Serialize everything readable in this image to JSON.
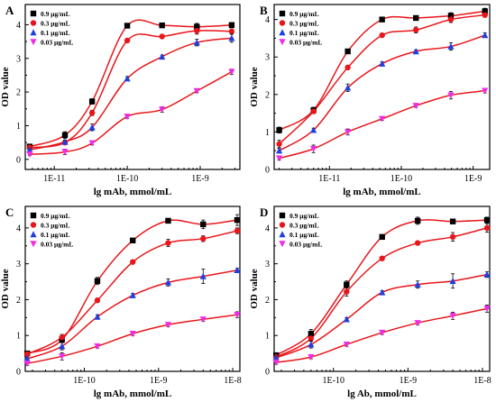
{
  "series_styles": [
    {
      "name": "0.9 μg/mL",
      "color": "#000000",
      "marker": "square"
    },
    {
      "name": "0.3 μg/mL",
      "color": "#e8161b",
      "marker": "circle"
    },
    {
      "name": "0.1 μg/mL",
      "color": "#1f3fe0",
      "marker": "triangle-up"
    },
    {
      "name": "0.03 μg/mL",
      "color": "#ee2ce6",
      "marker": "triangle-down"
    }
  ],
  "curve_color": "#e8161b",
  "chart_data": [
    {
      "panel": "A",
      "type": "scatter",
      "xlabel": "lg mAb, mmol/mL",
      "ylabel": "OD value",
      "xscale": "log",
      "xlim": [
        4e-12,
        3.5e-09
      ],
      "ylim": [
        -0.3,
        4.6
      ],
      "xticks": [
        1e-11,
        1e-10,
        1e-09
      ],
      "xtick_labels": [
        "1E-11",
        "1E-10",
        "1E-9"
      ],
      "yticks": [
        0,
        1,
        2,
        3,
        4
      ],
      "legend_position": "top-left",
      "x": [
        4.6e-12,
        1.4e-11,
        3.3e-11,
        1e-10,
        3e-10,
        9e-10,
        2.7e-09
      ],
      "series": [
        {
          "name": "0.9 μg/mL",
          "values": [
            0.38,
            0.72,
            1.72,
            3.97,
            3.98,
            3.94,
            3.99
          ],
          "errors": [
            0.05,
            0.1,
            0.08,
            0.04,
            0.05,
            0.1,
            0.06
          ]
        },
        {
          "name": "0.3 μg/mL",
          "values": [
            0.35,
            0.5,
            1.38,
            3.53,
            3.65,
            3.82,
            3.8
          ],
          "errors": [
            0.04,
            0.05,
            0.08,
            0.05,
            0.05,
            0.1,
            0.08
          ]
        },
        {
          "name": "0.1 μg/mL",
          "values": [
            0.28,
            0.52,
            0.95,
            2.4,
            3.05,
            3.47,
            3.6
          ],
          "errors": [
            0.04,
            0.05,
            0.1,
            0.06,
            0.05,
            0.1,
            0.12
          ]
        },
        {
          "name": "0.03 μg/mL",
          "values": [
            0.15,
            0.22,
            0.48,
            1.27,
            1.48,
            2.03,
            2.6
          ],
          "errors": [
            0.03,
            0.08,
            0.05,
            0.05,
            0.08,
            0.05,
            0.08
          ]
        }
      ]
    },
    {
      "panel": "B",
      "type": "scatter",
      "xlabel": "lg mAb, mmol/mL",
      "ylabel": "OD value",
      "xscale": "log",
      "xlim": [
        1.7e-12,
        1.7e-09
      ],
      "ylim": [
        0,
        4.4
      ],
      "xticks": [
        1e-11,
        1e-10,
        1e-09
      ],
      "xtick_labels": [
        "1E-11",
        "1E-10",
        "1E-9"
      ],
      "yticks": [
        0,
        1,
        2,
        3,
        4
      ],
      "legend_position": "top-left",
      "x": [
        2e-12,
        6e-12,
        1.8e-11,
        5.4e-11,
        1.6e-10,
        4.9e-10,
        1.46e-09
      ],
      "series": [
        {
          "name": "0.9 μg/mL",
          "values": [
            1.05,
            1.58,
            3.15,
            4.0,
            4.04,
            4.1,
            4.22
          ],
          "errors": [
            0.08,
            0.08,
            0.05,
            0.04,
            0.05,
            0.08,
            0.08
          ]
        },
        {
          "name": "0.3 μg/mL",
          "values": [
            0.68,
            1.55,
            2.72,
            3.58,
            3.72,
            4.0,
            4.12
          ],
          "errors": [
            0.1,
            0.06,
            0.05,
            0.04,
            0.08,
            0.08,
            0.06
          ]
        },
        {
          "name": "0.1 μg/mL",
          "values": [
            0.5,
            1.05,
            2.18,
            2.82,
            3.15,
            3.28,
            3.58
          ],
          "errors": [
            0.06,
            0.05,
            0.1,
            0.05,
            0.04,
            0.1,
            0.06
          ]
        },
        {
          "name": "0.03 μg/mL",
          "values": [
            0.3,
            0.55,
            1.0,
            1.35,
            1.7,
            1.98,
            2.1
          ],
          "errors": [
            0.05,
            0.1,
            0.08,
            0.04,
            0.04,
            0.1,
            0.06
          ]
        }
      ]
    },
    {
      "panel": "C",
      "type": "scatter",
      "xlabel": "lg mAb, mmol/mL",
      "ylabel": "OD value",
      "xscale": "log",
      "xlim": [
        1.6e-11,
        1.25e-08
      ],
      "ylim": [
        0,
        4.6
      ],
      "xticks": [
        1e-10,
        1e-09,
        1e-08
      ],
      "xtick_labels": [
        "1E-10",
        "1E-9",
        "1E-8"
      ],
      "yticks": [
        0,
        1,
        2,
        3,
        4
      ],
      "legend_position": "top-left",
      "x": [
        1.7e-11,
        5e-11,
        1.5e-10,
        4.5e-10,
        1.35e-09,
        4e-09,
        1.15e-08
      ],
      "series": [
        {
          "name": "0.9 μg/mL",
          "values": [
            0.5,
            0.88,
            2.52,
            3.65,
            4.2,
            4.1,
            4.22
          ],
          "errors": [
            0.05,
            0.08,
            0.1,
            0.05,
            0.05,
            0.12,
            0.15
          ]
        },
        {
          "name": "0.3 μg/mL",
          "values": [
            0.48,
            0.95,
            1.98,
            3.05,
            3.58,
            3.7,
            3.92
          ],
          "errors": [
            0.05,
            0.08,
            0.06,
            0.05,
            0.1,
            0.08,
            0.08
          ]
        },
        {
          "name": "0.1 μg/mL",
          "values": [
            0.35,
            0.7,
            1.52,
            2.12,
            2.48,
            2.65,
            2.82
          ],
          "errors": [
            0.05,
            0.1,
            0.06,
            0.05,
            0.1,
            0.2,
            0.05
          ]
        },
        {
          "name": "0.03 μg/mL",
          "values": [
            0.22,
            0.42,
            0.7,
            1.05,
            1.3,
            1.45,
            1.58
          ],
          "errors": [
            0.05,
            0.1,
            0.05,
            0.05,
            0.05,
            0.05,
            0.08
          ]
        }
      ]
    },
    {
      "panel": "D",
      "type": "scatter",
      "xlabel": "lg Ab, mmol/mL",
      "ylabel": "OD value",
      "xscale": "log",
      "xlim": [
        1.6e-11,
        1.25e-08
      ],
      "ylim": [
        0,
        4.6
      ],
      "xticks": [
        1e-10,
        1e-09,
        1e-08
      ],
      "xtick_labels": [
        "1E-10",
        "1E-9",
        "1E-8"
      ],
      "yticks": [
        0,
        1,
        2,
        3,
        4
      ],
      "legend_position": "top-left",
      "x": [
        1.7e-11,
        5e-11,
        1.5e-10,
        4.5e-10,
        1.35e-09,
        4e-09,
        1.15e-08
      ],
      "series": [
        {
          "name": "0.9 μg/mL",
          "values": [
            0.45,
            1.05,
            2.42,
            3.75,
            4.2,
            4.18,
            4.22
          ],
          "errors": [
            0.05,
            0.12,
            0.1,
            0.06,
            0.1,
            0.05,
            0.08
          ]
        },
        {
          "name": "0.3 μg/mL",
          "values": [
            0.4,
            0.92,
            2.22,
            3.15,
            3.58,
            3.75,
            4.0
          ],
          "errors": [
            0.05,
            0.08,
            0.12,
            0.05,
            0.05,
            0.12,
            0.12
          ]
        },
        {
          "name": "0.1 μg/mL",
          "values": [
            0.38,
            0.75,
            1.45,
            2.2,
            2.42,
            2.52,
            2.7
          ],
          "errors": [
            0.05,
            0.1,
            0.05,
            0.05,
            0.1,
            0.2,
            0.08
          ]
        },
        {
          "name": "0.03 μg/mL",
          "values": [
            0.25,
            0.4,
            0.75,
            1.08,
            1.35,
            1.55,
            1.75
          ],
          "errors": [
            0.05,
            0.05,
            0.05,
            0.05,
            0.05,
            0.1,
            0.1
          ]
        }
      ]
    }
  ]
}
